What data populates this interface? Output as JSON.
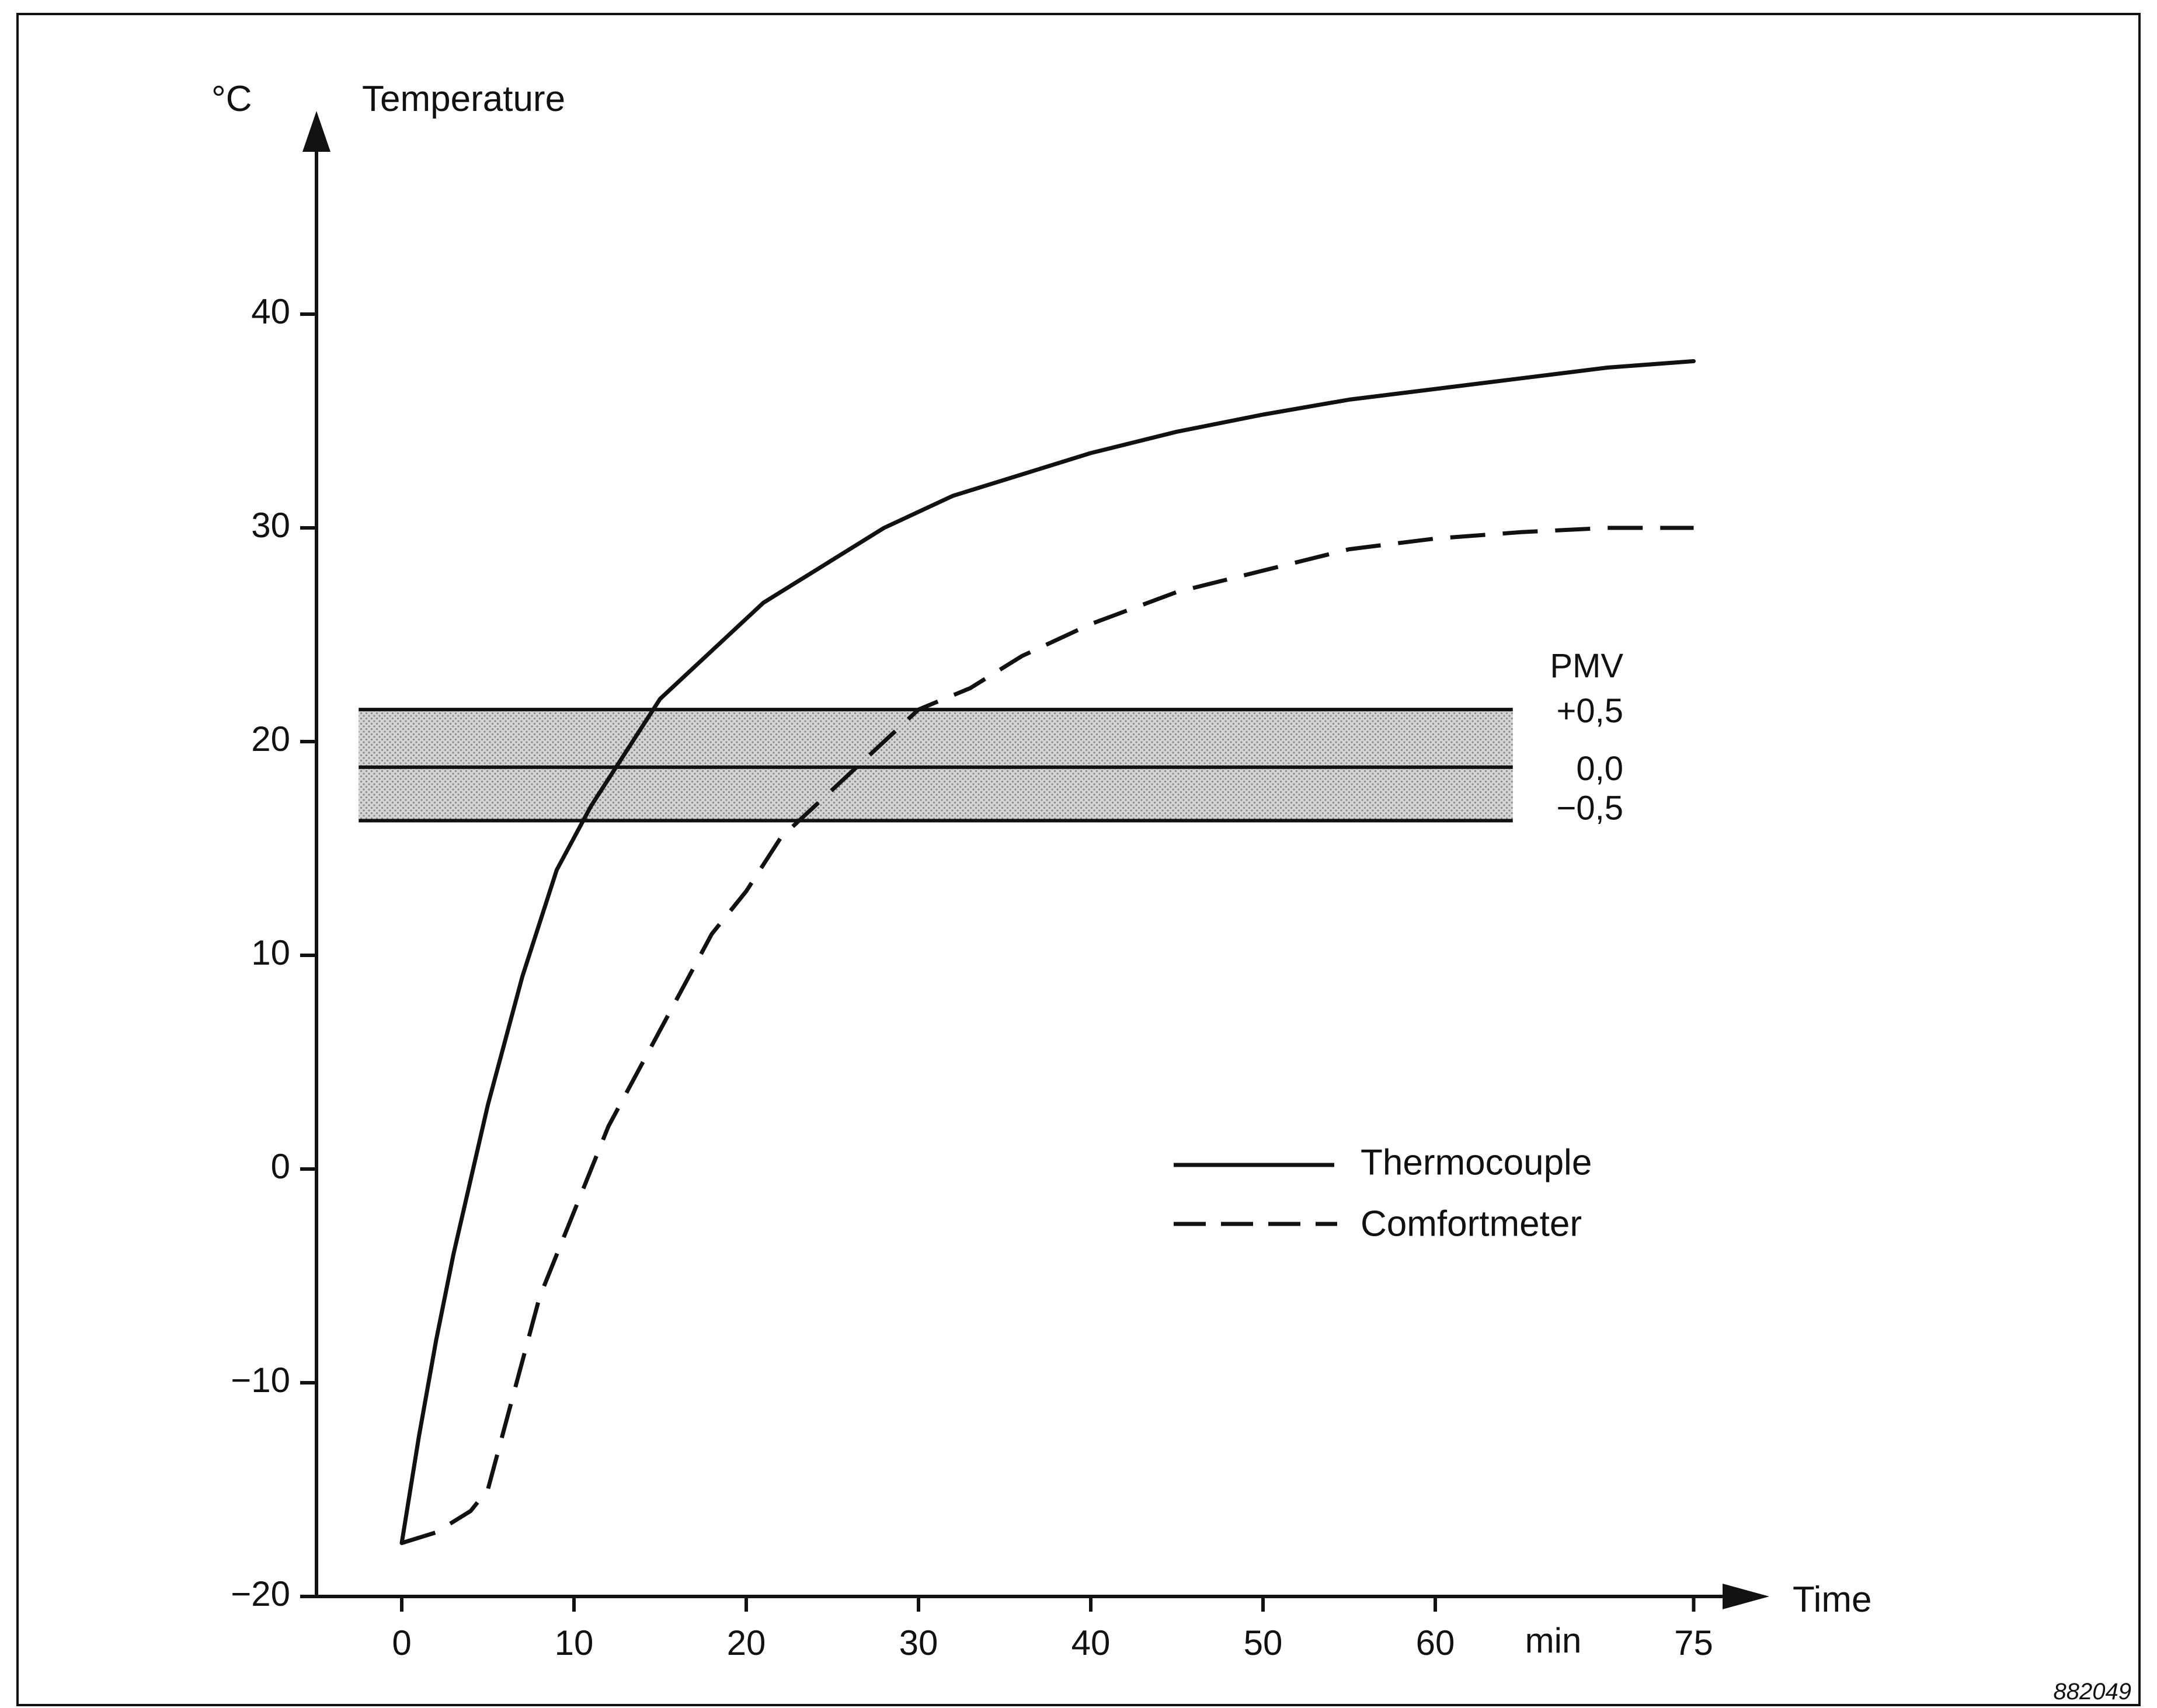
{
  "chart_data": {
    "type": "line",
    "title": "",
    "xlabel": "Time",
    "x_unit": "min",
    "ylabel": "Temperature",
    "y_unit": "°C",
    "xlim": [
      -5,
      77
    ],
    "ylim": [
      -20,
      48
    ],
    "x_ticks": [
      {
        "value": 0,
        "label": "0"
      },
      {
        "value": 10,
        "label": "10"
      },
      {
        "value": 20,
        "label": "20"
      },
      {
        "value": 30,
        "label": "30"
      },
      {
        "value": 40,
        "label": "40"
      },
      {
        "value": 50,
        "label": "50"
      },
      {
        "value": 60,
        "label": "60"
      },
      {
        "value": 75,
        "label": "75"
      }
    ],
    "y_ticks": [
      {
        "value": -20,
        "label": "−20"
      },
      {
        "value": -10,
        "label": "−10"
      },
      {
        "value": 0,
        "label": "0"
      },
      {
        "value": 10,
        "label": "10"
      },
      {
        "value": 20,
        "label": "20"
      },
      {
        "value": 30,
        "label": "30"
      },
      {
        "value": 40,
        "label": "40"
      }
    ],
    "grid": false,
    "legend": {
      "placement": "center-right"
    },
    "series": [
      {
        "name": "Thermocouple",
        "style": "solid",
        "x": [
          0,
          1,
          2,
          3,
          4,
          5,
          7,
          9,
          11,
          13,
          15,
          17,
          19,
          21,
          23,
          25,
          28,
          32,
          36,
          40,
          45,
          50,
          55,
          60,
          65,
          70,
          75
        ],
        "y": [
          -17.5,
          -12.5,
          -8,
          -4,
          -0.5,
          3,
          9,
          14,
          17,
          19.5,
          22,
          23.5,
          25,
          26.5,
          27.5,
          28.5,
          30,
          31.5,
          32.5,
          33.5,
          34.5,
          35.3,
          36,
          36.5,
          37,
          37.5,
          37.8
        ]
      },
      {
        "name": "Comfortmeter",
        "style": "dashed",
        "x": [
          0,
          2,
          4,
          5,
          6,
          8,
          10,
          12,
          14,
          16,
          18,
          20,
          22,
          24,
          26,
          28,
          30,
          33,
          36,
          40,
          45,
          50,
          55,
          60,
          65,
          70,
          75
        ],
        "y": [
          -17.5,
          -17,
          -16,
          -15,
          -12,
          -6,
          -2,
          2,
          5,
          8,
          11,
          13,
          15.5,
          17,
          18.5,
          20,
          21.5,
          22.5,
          24,
          25.5,
          27,
          28,
          29,
          29.5,
          29.8,
          30,
          30
        ]
      }
    ],
    "bands": [
      {
        "name": "PMV",
        "from": 16.3,
        "to": 21.5,
        "mid": 18.8,
        "label_upper": "+0,5",
        "label_mid": "0,0",
        "label_lower": "−0,5",
        "x_from": -2.5,
        "x_to": 64.5
      }
    ],
    "pmv_title": "PMV",
    "figure_code": "882049"
  }
}
